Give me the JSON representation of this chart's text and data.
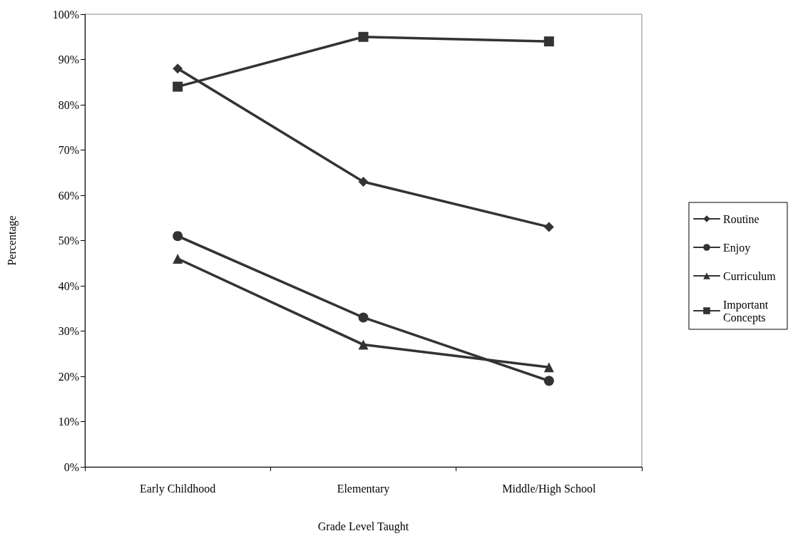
{
  "chart_data": {
    "type": "line",
    "xlabel": "Grade Level Taught",
    "ylabel": "Percentage",
    "categories": [
      "Early Childhood",
      "Elementary",
      "Middle/High School"
    ],
    "series": [
      {
        "name": "Routine",
        "color": "#333333",
        "marker": "diamond",
        "values": [
          88,
          63,
          53
        ]
      },
      {
        "name": "Enjoy",
        "color": "#333333",
        "marker": "circle",
        "values": [
          51,
          33,
          19
        ]
      },
      {
        "name": "Curriculum",
        "color": "#333333",
        "marker": "triangle",
        "values": [
          46,
          27,
          22
        ]
      },
      {
        "name": "Important Concepts",
        "color": "#333333",
        "marker": "square",
        "values": [
          84,
          95,
          94
        ]
      }
    ],
    "ylim": [
      0,
      100
    ],
    "yticks": [
      {
        "value": 0,
        "label": "0%"
      },
      {
        "value": 10,
        "label": "10%"
      },
      {
        "value": 20,
        "label": "20%"
      },
      {
        "value": 30,
        "label": "30%"
      },
      {
        "value": 40,
        "label": "40%"
      },
      {
        "value": 50,
        "label": "50%"
      },
      {
        "value": 60,
        "label": "60%"
      },
      {
        "value": 70,
        "label": "70%"
      },
      {
        "value": 80,
        "label": "80%"
      },
      {
        "value": 90,
        "label": "90%"
      },
      {
        "value": 100,
        "label": "100%"
      }
    ],
    "grid": false,
    "legend": "right",
    "line_style": "solid"
  }
}
